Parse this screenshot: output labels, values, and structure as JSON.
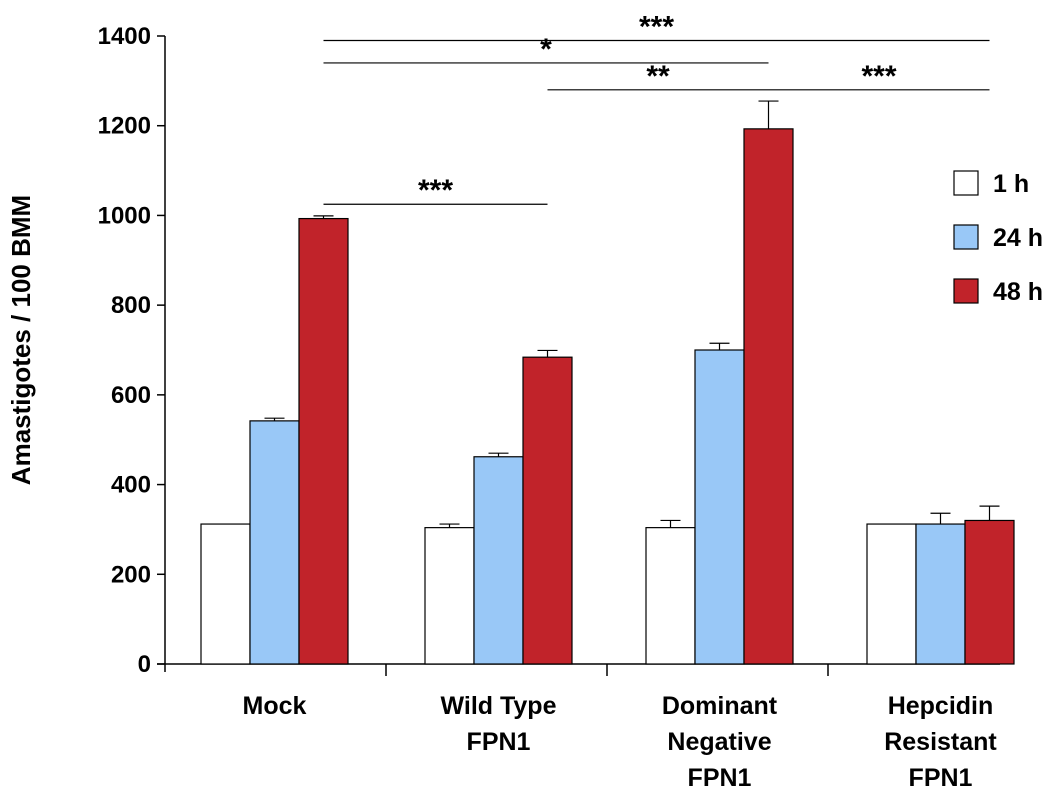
{
  "chart_data": {
    "type": "bar",
    "ylabel": "Amastigotes / 100 BMM",
    "xlabel": "",
    "ylim": [
      0,
      1400
    ],
    "yticks": [
      0,
      200,
      400,
      600,
      800,
      1000,
      1200,
      1400
    ],
    "categories": [
      [
        "Mock"
      ],
      [
        "Wild Type",
        "FPN1"
      ],
      [
        "Dominant",
        "Negative",
        "FPN1"
      ],
      [
        "Hepcidin",
        "Resistant",
        "FPN1"
      ]
    ],
    "series": [
      {
        "name": "1 h",
        "color": "#ffffff",
        "values": [
          312,
          304,
          304,
          312
        ],
        "errors": [
          0,
          8,
          16,
          0
        ]
      },
      {
        "name": "24 h",
        "color": "#99c8f7",
        "values": [
          542,
          462,
          700,
          312
        ],
        "errors": [
          6,
          8,
          15,
          24
        ]
      },
      {
        "name": "48 h",
        "color": "#c1232a",
        "values": [
          993,
          684,
          1193,
          320
        ],
        "errors": [
          6,
          15,
          62,
          32
        ]
      }
    ],
    "legend_position": "right",
    "significance": [
      {
        "label": "***",
        "from": [
          0,
          2
        ],
        "to": [
          3,
          2
        ],
        "level": 1390
      },
      {
        "label": "*",
        "from": [
          0,
          2
        ],
        "to": [
          2,
          2
        ],
        "level": 1340
      },
      {
        "label": "**",
        "from": [
          1,
          2
        ],
        "to": [
          2,
          2
        ],
        "level": 1280
      },
      {
        "label": "***",
        "from": [
          2,
          2
        ],
        "to": [
          3,
          2
        ],
        "level": 1280
      },
      {
        "label": "***",
        "from": [
          0,
          2
        ],
        "to": [
          1,
          2
        ],
        "level": 1025
      }
    ]
  }
}
